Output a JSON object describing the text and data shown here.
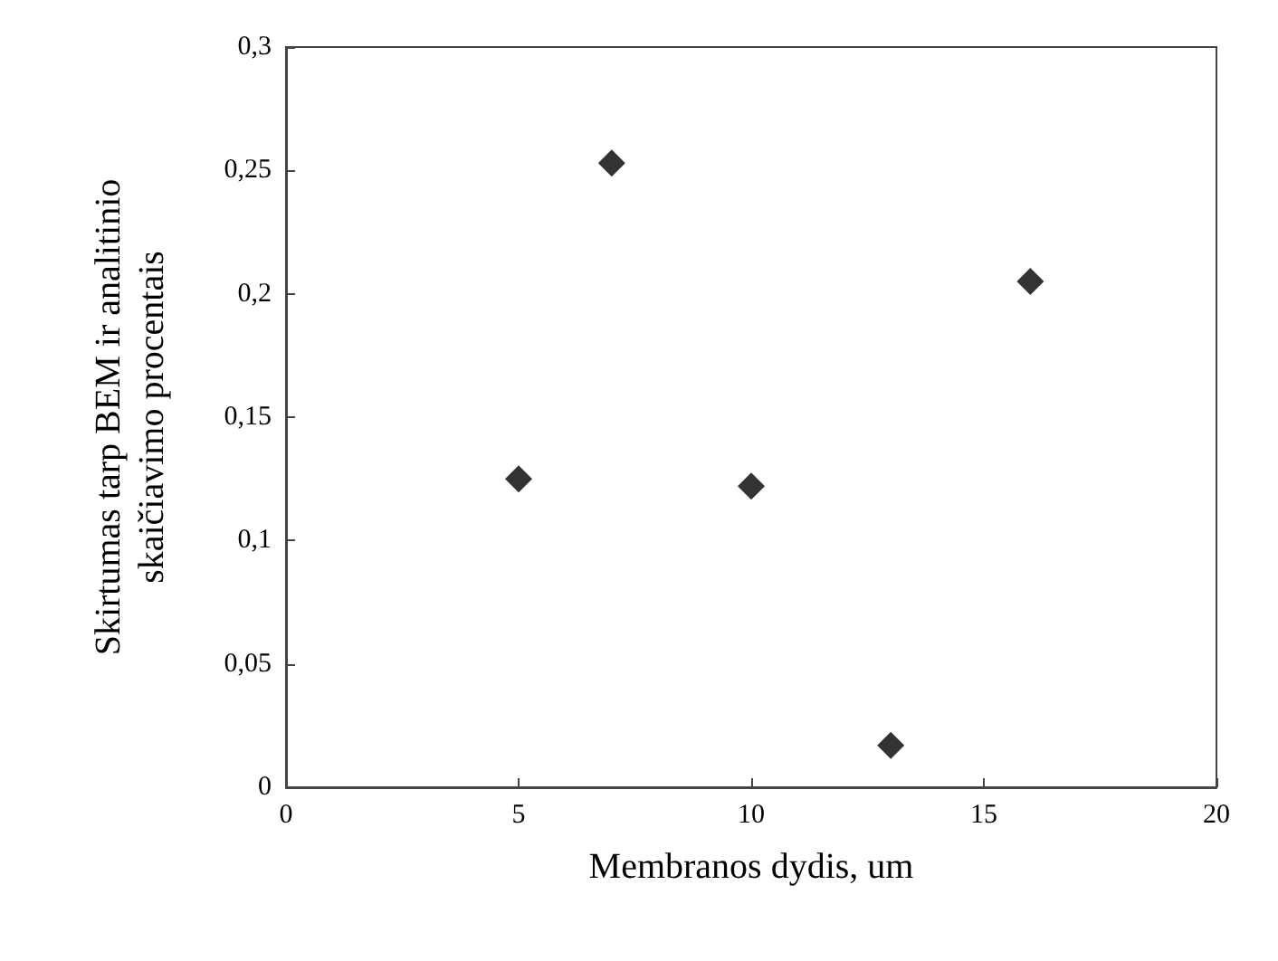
{
  "chart_data": {
    "type": "scatter",
    "xlabel": "Membranos dydis, um",
    "ylabel": "Skirtumas tarp BEM ir analitinio\nskaičiavimo procentais",
    "x": [
      5,
      7,
      10,
      13,
      16
    ],
    "series": [
      {
        "color": "#000000",
        "values": [
          0.125,
          0.253,
          0.122,
          0.017,
          0.205
        ]
      }
    ],
    "xlim": [
      0,
      20
    ],
    "xticks": [
      0,
      5,
      10,
      15,
      20
    ],
    "ylim": [
      0,
      0.3
    ],
    "yticks": [
      {
        "value": 0,
        "label": "0"
      },
      {
        "value": 0.05,
        "label": "0,05"
      },
      {
        "value": 0.1,
        "label": "0,1"
      },
      {
        "value": 0.15,
        "label": "0,15"
      },
      {
        "value": 0.2,
        "label": "0,2"
      },
      {
        "value": 0.25,
        "label": "0,25"
      },
      {
        "value": 0.3,
        "label": "0,3"
      }
    ],
    "grid": false,
    "marker": "diamond"
  }
}
